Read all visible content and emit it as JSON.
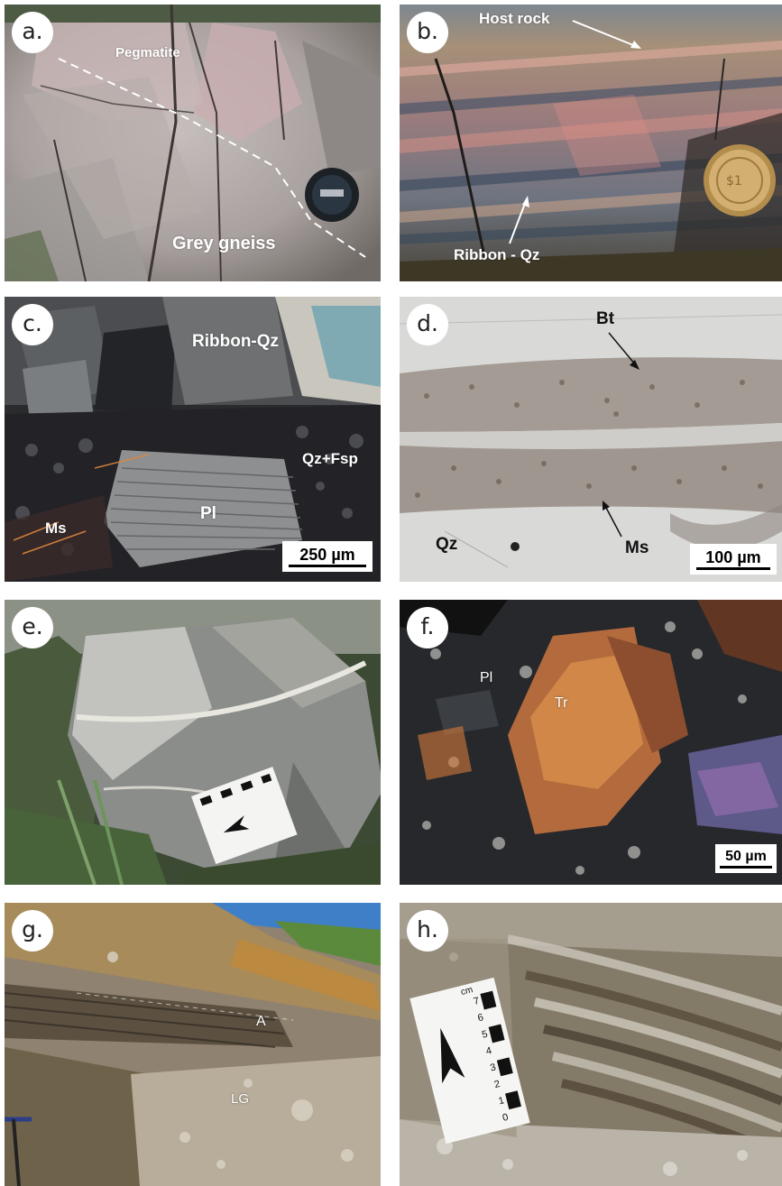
{
  "panels": {
    "a": {
      "letter": "a.",
      "labels": {
        "pegmatite": "Pegmatite",
        "grey_gneiss": "Grey gneiss"
      }
    },
    "b": {
      "letter": "b.",
      "labels": {
        "host_rock": "Host rock",
        "ribbon_qz": "Ribbon - Qz"
      }
    },
    "c": {
      "letter": "c.",
      "labels": {
        "ribbon_qz": "Ribbon-Qz",
        "qz_fsp": "Qz+Fsp",
        "pl": "Pl",
        "ms": "Ms"
      },
      "scale": "250 µm"
    },
    "d": {
      "letter": "d.",
      "labels": {
        "bt": "Bt",
        "qz": "Qz",
        "ms": "Ms"
      },
      "scale": "100 µm"
    },
    "e": {
      "letter": "e."
    },
    "f": {
      "letter": "f.",
      "labels": {
        "pl": "Pl",
        "tr": "Tr"
      },
      "scale": "50 µm"
    },
    "g": {
      "letter": "g.",
      "labels": {
        "a": "A",
        "lg": "LG"
      }
    },
    "h": {
      "letter": "h.",
      "ruler": {
        "unit": "cm",
        "ticks": [
          "7",
          "6",
          "5",
          "4",
          "3",
          "2",
          "1",
          "0"
        ]
      }
    }
  }
}
